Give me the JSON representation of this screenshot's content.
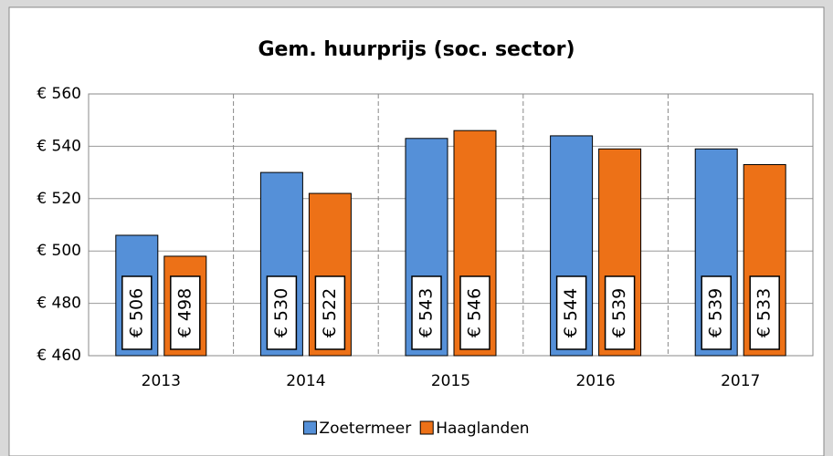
{
  "chart_data": {
    "type": "bar",
    "title": "Gem. huurprijs (soc. sector)",
    "categories": [
      "2013",
      "2014",
      "2015",
      "2016",
      "2017"
    ],
    "series": [
      {
        "name": "Zoetermeer",
        "color": "#5590d8",
        "values": [
          506,
          530,
          543,
          544,
          539
        ],
        "value_labels": [
          "€ 506",
          "€ 530",
          "€ 543",
          "€ 544",
          "€ 539"
        ]
      },
      {
        "name": "Haaglanden",
        "color": "#ed7117",
        "values": [
          498,
          522,
          546,
          539,
          533
        ],
        "value_labels": [
          "€ 498",
          "€ 522",
          "€ 546",
          "€ 539",
          "€ 533"
        ]
      }
    ],
    "ylim": [
      460,
      560
    ],
    "yticks": [
      {
        "value": 460,
        "label": "€ 460"
      },
      {
        "value": 480,
        "label": "€ 480"
      },
      {
        "value": 500,
        "label": "€ 500"
      },
      {
        "value": 520,
        "label": "€ 520"
      },
      {
        "value": 540,
        "label": "€ 540"
      },
      {
        "value": 560,
        "label": "€ 560"
      }
    ],
    "grid": true,
    "legend": "bottom"
  }
}
